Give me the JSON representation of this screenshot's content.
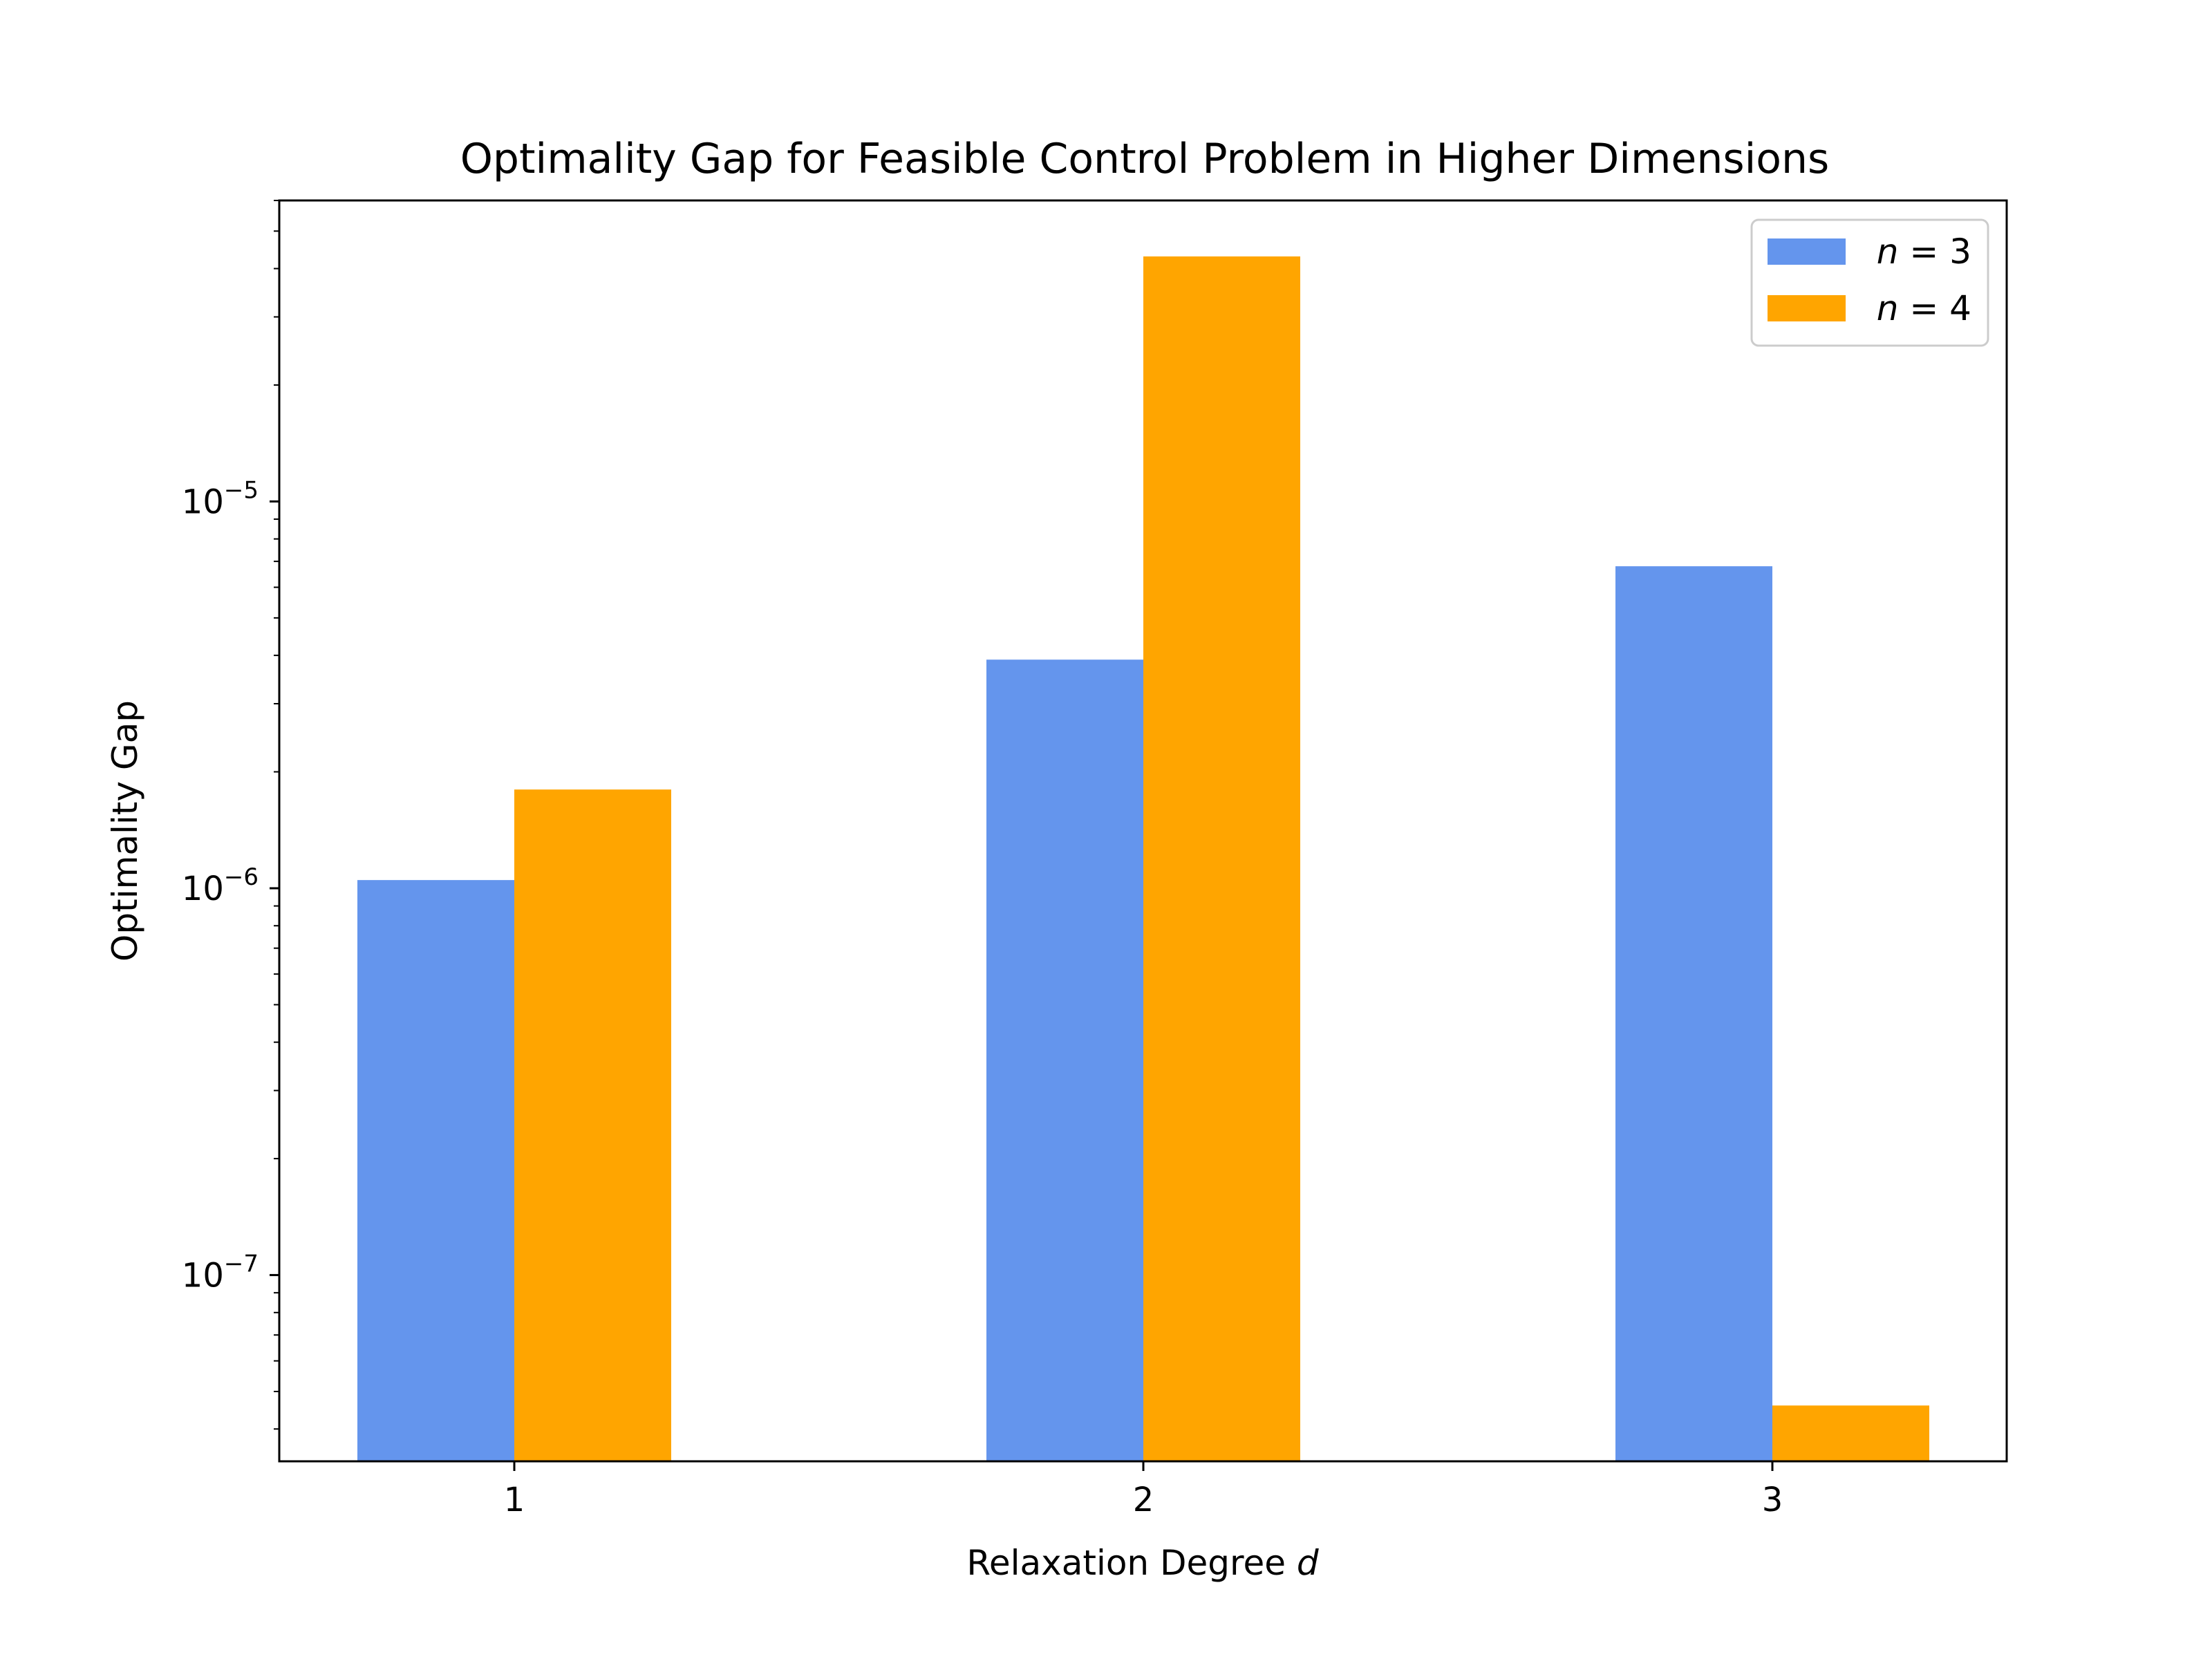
{
  "chart_data": {
    "type": "bar",
    "title": "Optimality Gap for Feasible Control Problem in Higher Dimensions",
    "xlabel": "Relaxation Degree d",
    "xlabel_main": "Relaxation Degree ",
    "xlabel_var": "d",
    "ylabel": "Optimality Gap",
    "yscale": "log",
    "ylim": [
      3.3e-08,
      6e-05
    ],
    "categories": [
      "1",
      "2",
      "3"
    ],
    "series": [
      {
        "name": "n = 3",
        "name_var": "n",
        "name_eq": " = 3",
        "color": "#6495ED",
        "values": [
          1.05e-06,
          3.9e-06,
          6.8e-06
        ]
      },
      {
        "name": "n = 4",
        "name_var": "n",
        "name_eq": " = 4",
        "color": "#FFA500",
        "values": [
          1.8e-06,
          4.3e-05,
          4.6e-08
        ]
      }
    ],
    "yticks": [
      {
        "value": 1e-07,
        "base": "10",
        "exp": "−7"
      },
      {
        "value": 1e-06,
        "base": "10",
        "exp": "−6"
      },
      {
        "value": 1e-05,
        "base": "10",
        "exp": "−5"
      }
    ],
    "legend": {
      "position": "upper-right"
    },
    "grid": false
  }
}
